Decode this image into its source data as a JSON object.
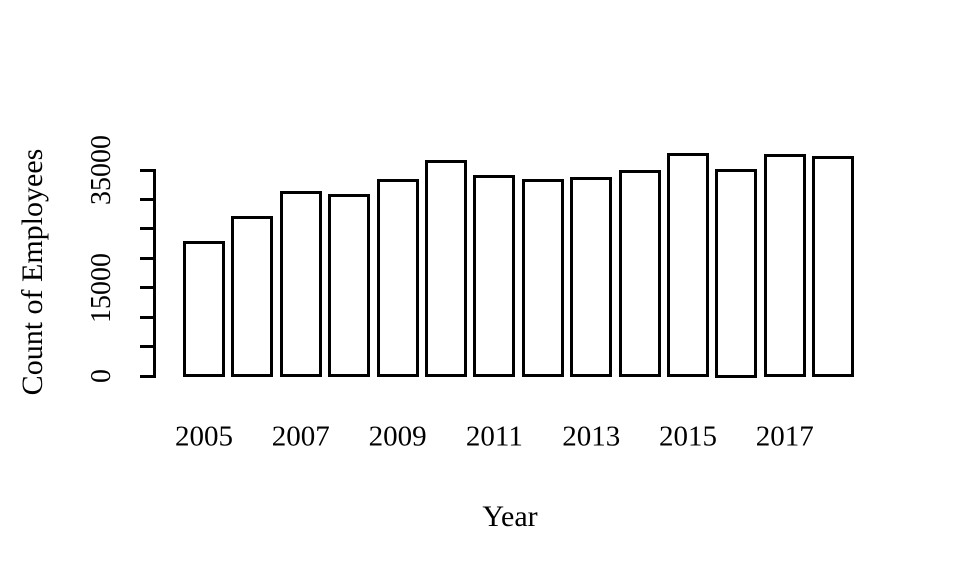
{
  "figure": {
    "background": "#ffffff",
    "ink_color": "#000000"
  },
  "chart_data": {
    "type": "bar",
    "title": "",
    "xlabel": "Year",
    "ylabel": "Count of Employees",
    "categories": [
      "2005",
      "2006",
      "2007",
      "2008",
      "2009",
      "2010",
      "2011",
      "2012",
      "2013",
      "2014",
      "2015",
      "2016",
      "2017",
      "2018"
    ],
    "values": [
      22600,
      26900,
      31100,
      30600,
      33200,
      36400,
      33900,
      33200,
      33500,
      34700,
      37600,
      35000,
      37400,
      37200
    ],
    "x_tick_labels": [
      "2005",
      "2007",
      "2009",
      "2011",
      "2013",
      "2015",
      "2017"
    ],
    "y_ticks": [
      0,
      5000,
      10000,
      15000,
      20000,
      25000,
      30000,
      35000
    ],
    "y_tick_labels_shown": [
      "0",
      "15000",
      "35000"
    ],
    "ylim": [
      0,
      35000
    ],
    "grid": false,
    "legend": "none",
    "bar_fill": "#ffffff",
    "bar_border": "#000000",
    "background": "#ffffff"
  }
}
